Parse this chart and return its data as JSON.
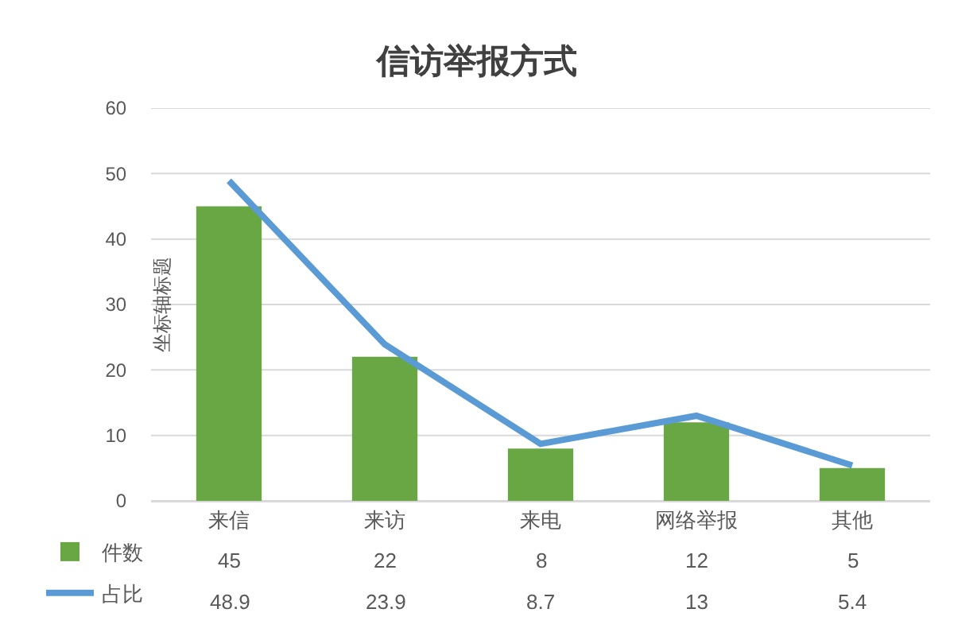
{
  "chart_data": {
    "type": "bar",
    "title": "信访举报方式",
    "ylabel": "坐标轴标题",
    "categories": [
      "来信",
      "来访",
      "来电",
      "网络举报",
      "其他"
    ],
    "series": [
      {
        "name": "件数",
        "color": "#68a743",
        "values": [
          45,
          22,
          8,
          12,
          5
        ]
      },
      {
        "name": "占比",
        "type": "line",
        "color": "#5b9bd5",
        "values": [
          48.9,
          23.9,
          8.7,
          13,
          5.4
        ]
      }
    ],
    "ylim": [
      0,
      60
    ],
    "yticks": [
      0,
      10,
      20,
      30,
      40,
      50,
      60
    ],
    "grid": "y",
    "legend": "bottom left",
    "data_labels": true,
    "marker": "none",
    "line_style": "solid"
  }
}
